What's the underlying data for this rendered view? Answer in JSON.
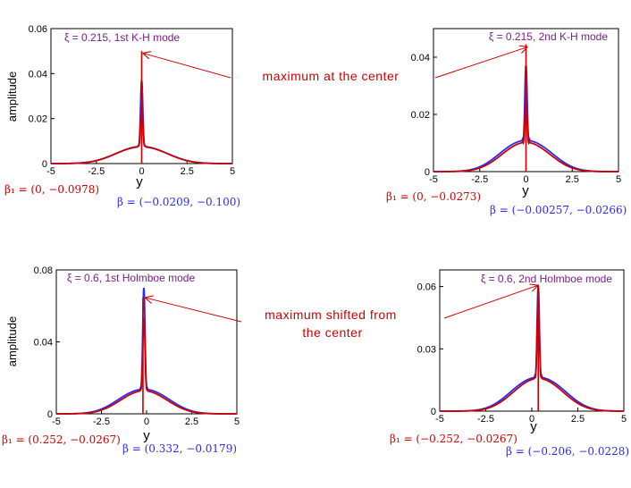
{
  "colors": {
    "red": "#cc0000",
    "blue": "#2a2aff",
    "frame": "#000000"
  },
  "annotations": {
    "top": "maximum at the center",
    "bottom_line1": "maximum shifted from",
    "bottom_line2": "the center"
  },
  "chart_data": [
    {
      "type": "line",
      "title": "ξ = 0.215, 1st K-H mode",
      "xlabel": "y",
      "ylabel": "amplitude",
      "xlim": [
        -5,
        5
      ],
      "ylim": [
        0,
        0.06
      ],
      "xticks": [
        "-5",
        "-2.5",
        "0",
        "2.5",
        "5"
      ],
      "yticks": [
        "0",
        "0.02",
        "0.04",
        "0.06"
      ],
      "series": [
        {
          "name": "β₁ = (0, −0.0978)",
          "color": "red",
          "peak_x": 0,
          "peak_y": 0.026,
          "side_x": 0.65,
          "side_y": 0.0045,
          "width": 1.6
        },
        {
          "name": "β = (−0.0209, −0.100)",
          "color": "blue",
          "peak_x": 0,
          "peak_y": 0.037,
          "side_x": 0.7,
          "side_y": 0.0045,
          "width": 1.6
        }
      ],
      "arrow_point": {
        "x": 0.1,
        "y": 0.049
      },
      "vline": {
        "x": 0,
        "y_top": 0.05
      }
    },
    {
      "type": "line",
      "title": "ξ = 0.215, 2nd K-H mode",
      "xlabel": "y",
      "ylabel": "",
      "xlim": [
        -5,
        5
      ],
      "ylim": [
        0,
        0.05
      ],
      "xticks": [
        "-5",
        "-2.5",
        "0",
        "2.5",
        "5"
      ],
      "yticks": [
        "0",
        "0.02",
        "0.04"
      ],
      "series": [
        {
          "name": "β₁ = (0, −0.0273)",
          "color": "red",
          "peak_x": 0,
          "peak_y": 0.024,
          "side_x": 0.6,
          "side_y": 0.006,
          "width": 1.5
        },
        {
          "name": "β = (−0.00257, −0.0266)",
          "color": "blue",
          "peak_x": 0,
          "peak_y": 0.037,
          "side_x": 0.7,
          "side_y": 0.0068,
          "width": 1.5
        }
      ],
      "arrow_point": {
        "x": 0.05,
        "y": 0.0435
      },
      "vline": {
        "x": 0,
        "y_top": 0.0445
      }
    },
    {
      "type": "line",
      "title": "ξ = 0.6, 1st Holmboe mode",
      "xlabel": "y",
      "ylabel": "amplitude",
      "xlim": [
        -5,
        5
      ],
      "ylim": [
        0,
        0.08
      ],
      "xticks": [
        "-5",
        "-2.5",
        "0",
        "2.5",
        "5"
      ],
      "yticks": [
        "0",
        "0.04",
        "0.08"
      ],
      "series": [
        {
          "name": "β₁ = (0.252, −0.0267)",
          "color": "red",
          "peak_x": -0.15,
          "peak_y": 0.052,
          "side_x": 0.6,
          "side_y": 0.0075,
          "width": 1.5
        },
        {
          "name": "β = (0.332, −0.0179)",
          "color": "blue",
          "peak_x": -0.15,
          "peak_y": 0.07,
          "side_x": 0.7,
          "side_y": 0.0085,
          "width": 1.5
        }
      ],
      "arrow_point": {
        "x": -0.05,
        "y": 0.0645
      },
      "vline": {
        "x": -0.2,
        "y_top": 0.0645
      }
    },
    {
      "type": "line",
      "title": "ξ = 0.6, 2nd Holmboe mode",
      "xlabel": "y",
      "ylabel": "",
      "xlim": [
        -5,
        5
      ],
      "ylim": [
        0,
        0.068
      ],
      "xticks": [
        "-5",
        "-2.5",
        "0",
        "2.5",
        "5"
      ],
      "yticks": [
        "0",
        "0.03",
        "0.06"
      ],
      "series": [
        {
          "name": "β₁ = (−0.252, −0.0267)",
          "color": "red",
          "peak_x": 0.35,
          "peak_y": 0.053,
          "side_x": 0.65,
          "side_y": 0.0095,
          "width": 1.5
        },
        {
          "name": "β = (−0.206, −0.0228)",
          "color": "blue",
          "peak_x": 0.35,
          "peak_y": 0.06,
          "side_x": 0.75,
          "side_y": 0.0105,
          "width": 1.5
        }
      ],
      "arrow_point": {
        "x": 0.3,
        "y": 0.0605
      },
      "vline": {
        "x": 0.35,
        "y_top": 0.0605
      }
    }
  ]
}
